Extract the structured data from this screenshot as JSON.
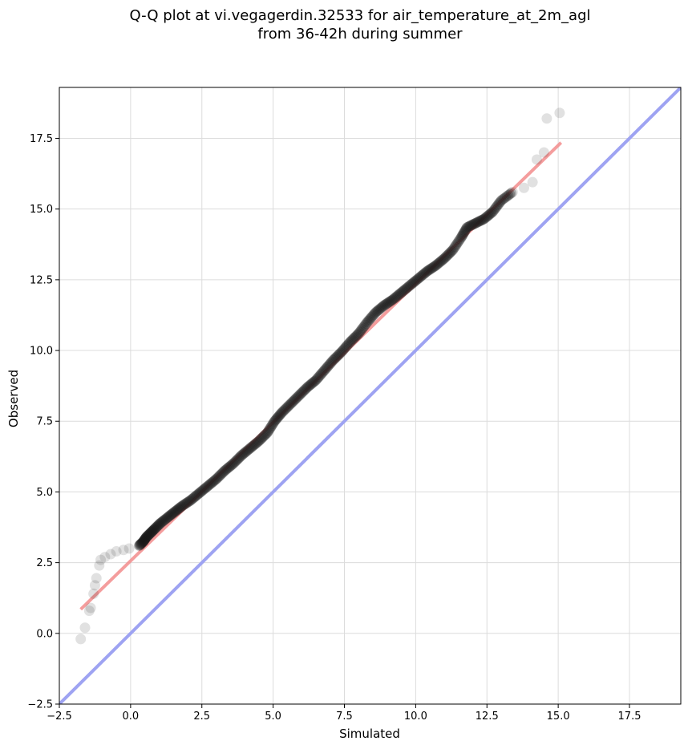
{
  "chart_data": {
    "type": "scatter",
    "title_lines": [
      "Q-Q plot at vi.vegagerdin.32533 for air_temperature_at_2m_agl",
      "from 36-42h during summer"
    ],
    "xlabel": "Simulated",
    "ylabel": "Observed",
    "xlim": [
      -2.5,
      19.3
    ],
    "ylim": [
      -2.5,
      19.3
    ],
    "x_ticks": [
      -2.5,
      0.0,
      2.5,
      5.0,
      7.5,
      10.0,
      12.5,
      15.0,
      17.5
    ],
    "y_ticks": [
      -2.5,
      0.0,
      2.5,
      5.0,
      7.5,
      10.0,
      12.5,
      15.0,
      17.5
    ],
    "x_tick_labels": [
      "−2.5",
      "0.0",
      "2.5",
      "5.0",
      "7.5",
      "10.0",
      "12.5",
      "15.0",
      "17.5"
    ],
    "y_tick_labels": [
      "−2.5",
      "0.0",
      "2.5",
      "5.0",
      "7.5",
      "10.0",
      "12.5",
      "15.0",
      "17.5"
    ],
    "grid": true,
    "quantile_points": [
      [
        -1.75,
        -0.2
      ],
      [
        -1.6,
        0.2
      ],
      [
        -1.45,
        0.8
      ],
      [
        -1.4,
        0.9
      ],
      [
        -1.3,
        1.4
      ],
      [
        -1.25,
        1.7
      ],
      [
        -1.2,
        1.95
      ],
      [
        -1.1,
        2.4
      ],
      [
        -1.05,
        2.6
      ],
      [
        -0.9,
        2.7
      ],
      [
        -0.7,
        2.8
      ],
      [
        -0.5,
        2.9
      ],
      [
        -0.25,
        2.95
      ],
      [
        -0.05,
        3.0
      ],
      [
        0.3,
        3.1
      ],
      [
        0.45,
        3.25
      ],
      [
        0.55,
        3.4
      ],
      [
        0.7,
        3.55
      ],
      [
        0.85,
        3.7
      ],
      [
        1.05,
        3.9
      ],
      [
        1.3,
        4.1
      ],
      [
        1.55,
        4.3
      ],
      [
        1.8,
        4.5
      ],
      [
        2.1,
        4.7
      ],
      [
        2.4,
        4.95
      ],
      [
        2.7,
        5.2
      ],
      [
        3.0,
        5.45
      ],
      [
        3.3,
        5.75
      ],
      [
        3.6,
        6.0
      ],
      [
        3.9,
        6.3
      ],
      [
        4.2,
        6.55
      ],
      [
        4.5,
        6.8
      ],
      [
        4.8,
        7.1
      ],
      [
        5.05,
        7.5
      ],
      [
        5.3,
        7.8
      ],
      [
        5.6,
        8.1
      ],
      [
        5.9,
        8.4
      ],
      [
        6.2,
        8.7
      ],
      [
        6.5,
        8.95
      ],
      [
        6.8,
        9.3
      ],
      [
        7.1,
        9.65
      ],
      [
        7.4,
        9.95
      ],
      [
        7.7,
        10.3
      ],
      [
        8.0,
        10.6
      ],
      [
        8.3,
        11.0
      ],
      [
        8.6,
        11.35
      ],
      [
        8.9,
        11.6
      ],
      [
        9.2,
        11.8
      ],
      [
        9.5,
        12.05
      ],
      [
        9.8,
        12.3
      ],
      [
        10.1,
        12.55
      ],
      [
        10.4,
        12.8
      ],
      [
        10.7,
        13.0
      ],
      [
        11.0,
        13.25
      ],
      [
        11.3,
        13.55
      ],
      [
        11.6,
        14.0
      ],
      [
        11.8,
        14.35
      ],
      [
        12.1,
        14.5
      ],
      [
        12.4,
        14.65
      ],
      [
        12.7,
        14.9
      ],
      [
        13.0,
        15.3
      ],
      [
        13.4,
        15.6
      ],
      [
        13.8,
        15.75
      ],
      [
        14.1,
        15.95
      ],
      [
        14.25,
        16.75
      ],
      [
        14.5,
        17.0
      ],
      [
        14.6,
        18.2
      ],
      [
        15.05,
        18.4
      ]
    ],
    "fit_line": [
      [
        -1.75,
        0.85
      ],
      [
        15.1,
        17.35
      ]
    ],
    "reference_line": [
      [
        -2.5,
        -2.5
      ],
      [
        19.3,
        19.3
      ]
    ],
    "colors": {
      "points": "#1a1a1a",
      "fit_line": "#f28c8c",
      "reference_line": "#9ea3f2",
      "grid": "#dcdcdc"
    }
  }
}
